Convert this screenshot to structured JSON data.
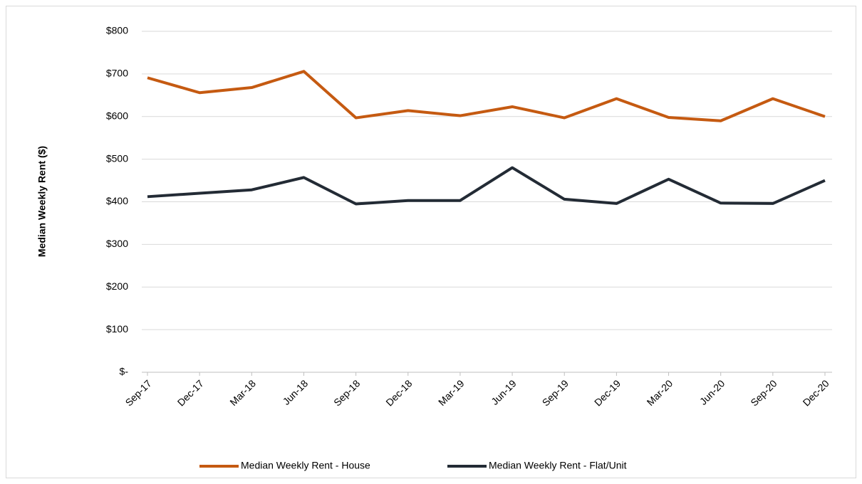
{
  "chart_data": {
    "type": "line",
    "y_label": "Median Weekly Rent ($)",
    "categories": [
      "Sep-17",
      "Dec-17",
      "Mar-18",
      "Jun-18",
      "Sep-18",
      "Dec-18",
      "Mar-19",
      "Jun-19",
      "Sep-19",
      "Dec-19",
      "Mar-20",
      "Jun-20",
      "Sep-20",
      "Dec-20"
    ],
    "series": [
      {
        "name": "Median Weekly Rent - House",
        "color": "#c55a11",
        "values": [
          691,
          656,
          668,
          706,
          597,
          614,
          602,
          623,
          597,
          642,
          598,
          590,
          642,
          600
        ]
      },
      {
        "name": "Median Weekly Rent - Flat/Unit",
        "color": "#232b35",
        "values": [
          412,
          420,
          428,
          457,
          395,
          403,
          403,
          480,
          406,
          396,
          453,
          397,
          396,
          450
        ]
      }
    ],
    "ylim": [
      0,
      800
    ],
    "yticks": [
      {
        "value": 0,
        "label": "$-"
      },
      {
        "value": 100,
        "label": "$100"
      },
      {
        "value": 200,
        "label": "$200"
      },
      {
        "value": 300,
        "label": "$300"
      },
      {
        "value": 400,
        "label": "$400"
      },
      {
        "value": 500,
        "label": "$500"
      },
      {
        "value": 600,
        "label": "$600"
      },
      {
        "value": 700,
        "label": "$700"
      },
      {
        "value": 800,
        "label": "$800"
      }
    ],
    "grid": true,
    "legend": "bottom"
  }
}
